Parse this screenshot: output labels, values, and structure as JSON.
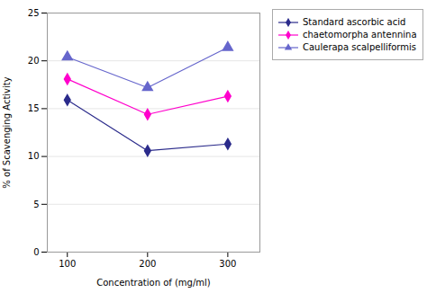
{
  "chart_data": {
    "type": "line",
    "x": [
      100,
      200,
      300
    ],
    "series": [
      {
        "name": "Standard ascorbic acid",
        "color": "#2B2B8B",
        "marker": "diamond",
        "values": [
          15.9,
          10.6,
          11.3
        ]
      },
      {
        "name": "chaetomorpha antennina",
        "color": "#FF00CC",
        "marker": "diamond",
        "values": [
          18.1,
          14.4,
          16.3
        ]
      },
      {
        "name": "Caulerapa scalpelliformis",
        "color": "#6666CC",
        "marker": "triangle",
        "values": [
          20.4,
          17.2,
          21.4
        ]
      }
    ],
    "xlabel": "Concentration of (mg/ml)",
    "ylabel": "% of Scavenging Activity",
    "xlim": [
      75,
      340
    ],
    "xticks": [
      100,
      200,
      300
    ],
    "ylim": [
      0,
      25
    ],
    "yticks": [
      0,
      5,
      10,
      15,
      20,
      25
    ],
    "grid": true,
    "legend": "right"
  }
}
